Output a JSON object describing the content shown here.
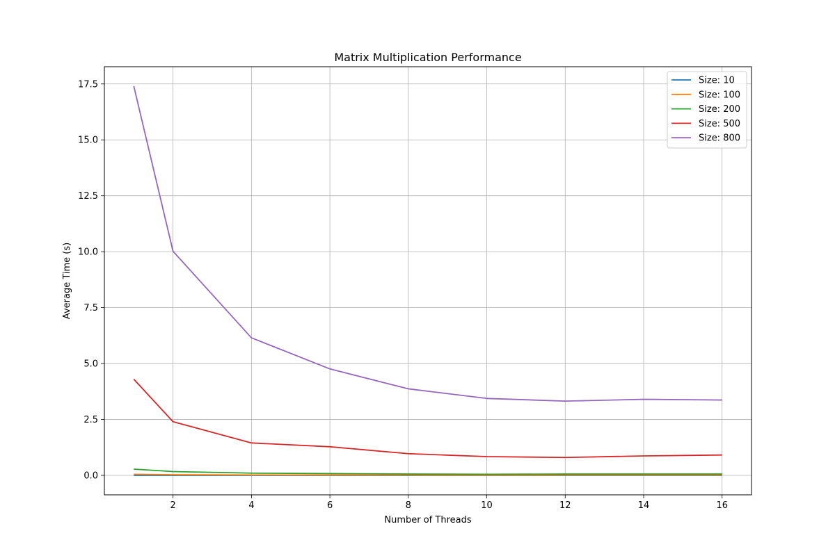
{
  "chart_data": {
    "type": "line",
    "title": "Matrix Multiplication Performance",
    "xlabel": "Number of Threads",
    "ylabel": "Average Time (s)",
    "x": [
      1,
      2,
      4,
      6,
      8,
      10,
      12,
      14,
      16
    ],
    "xlim": [
      0.25,
      16.75
    ],
    "ylim": [
      -0.87,
      18.27
    ],
    "xticks": [
      2,
      4,
      6,
      8,
      10,
      12,
      14,
      16
    ],
    "xtick_labels": [
      "2",
      "4",
      "6",
      "8",
      "10",
      "12",
      "14",
      "16"
    ],
    "yticks": [
      0.0,
      2.5,
      5.0,
      7.5,
      10.0,
      12.5,
      15.0,
      17.5
    ],
    "ytick_labels": [
      "0.0",
      "2.5",
      "5.0",
      "7.5",
      "10.0",
      "12.5",
      "15.0",
      "17.5"
    ],
    "grid": true,
    "legend_position": "upper right",
    "series": [
      {
        "name": "Size: 10",
        "color": "#1f77b4",
        "values": [
          0.001,
          0.001,
          0.001,
          0.001,
          0.001,
          0.001,
          0.001,
          0.001,
          0.001
        ]
      },
      {
        "name": "Size: 100",
        "color": "#ff7f0e",
        "values": [
          0.05,
          0.03,
          0.02,
          0.015,
          0.015,
          0.012,
          0.015,
          0.015,
          0.015
        ]
      },
      {
        "name": "Size: 200",
        "color": "#2ca02c",
        "values": [
          0.28,
          0.17,
          0.1,
          0.08,
          0.06,
          0.05,
          0.06,
          0.06,
          0.06
        ]
      },
      {
        "name": "Size: 500",
        "color": "#d62728",
        "values": [
          4.3,
          2.4,
          1.45,
          1.28,
          0.97,
          0.84,
          0.8,
          0.87,
          0.91
        ]
      },
      {
        "name": "Size: 800",
        "color": "#9467bd",
        "values": [
          17.4,
          10.02,
          6.15,
          4.76,
          3.87,
          3.44,
          3.32,
          3.4,
          3.37
        ]
      }
    ]
  }
}
